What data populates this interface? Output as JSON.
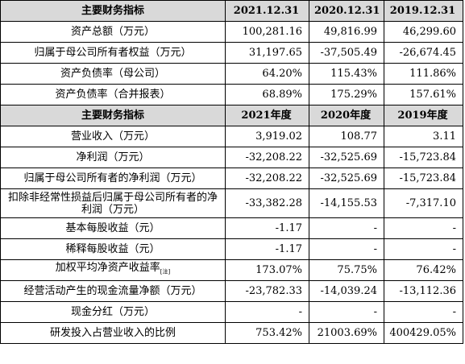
{
  "table": {
    "section1": {
      "header": [
        "主要财务指标",
        "2021.12.31",
        "2020.12.31",
        "2019.12.31"
      ],
      "rows": [
        {
          "label": "资产总额（万元）",
          "values": [
            "100,281.16",
            "49,816.99",
            "46,299.60"
          ]
        },
        {
          "label": "归属于母公司所有者权益（万元）",
          "values": [
            "31,197.65",
            "-37,505.49",
            "-26,674.45"
          ]
        },
        {
          "label": "资产负债率（母公司）",
          "values": [
            "64.20%",
            "115.43%",
            "111.86%"
          ]
        },
        {
          "label": "资产负债率（合并报表）",
          "values": [
            "68.89%",
            "175.29%",
            "157.61%"
          ]
        }
      ]
    },
    "section2": {
      "header": [
        "主要财务指标",
        "2021年度",
        "2020年度",
        "2019年度"
      ],
      "rows": [
        {
          "label": "营业收入（万元）",
          "values": [
            "3,919.02",
            "108.77",
            "3.11"
          ]
        },
        {
          "label": "净利润（万元）",
          "values": [
            "-32,208.22",
            "-32,525.69",
            "-15,723.84"
          ]
        },
        {
          "label": "归属于母公司所有者的净利润（万元）",
          "values": [
            "-32,208.22",
            "-32,525.69",
            "-15,723.84"
          ]
        },
        {
          "label": "扣除非经常性损益后归属于母公司所有者的净利润（万元）",
          "values": [
            "-33,382.28",
            "-14,155.53",
            "-7,317.10"
          ]
        },
        {
          "label": "基本每股收益（元）",
          "values": [
            "-1.17",
            "-",
            "-"
          ]
        },
        {
          "label": "稀释每股收益（元）",
          "values": [
            "-1.17",
            "-",
            "-"
          ]
        },
        {
          "label": "加权平均净资产收益率",
          "label_sub": "[注]",
          "values": [
            "173.07%",
            "75.75%",
            "76.42%"
          ]
        },
        {
          "label": "经营活动产生的现金流量净额（万元）",
          "values": [
            "-23,782.33",
            "-14,039.24",
            "-13,112.36"
          ]
        },
        {
          "label": "现金分红（万元）",
          "values": [
            "-",
            "-",
            "-"
          ]
        },
        {
          "label": "研发投入占营业收入的比例",
          "values": [
            "753.42%",
            "21003.69%",
            "400429.05%"
          ]
        }
      ]
    }
  }
}
